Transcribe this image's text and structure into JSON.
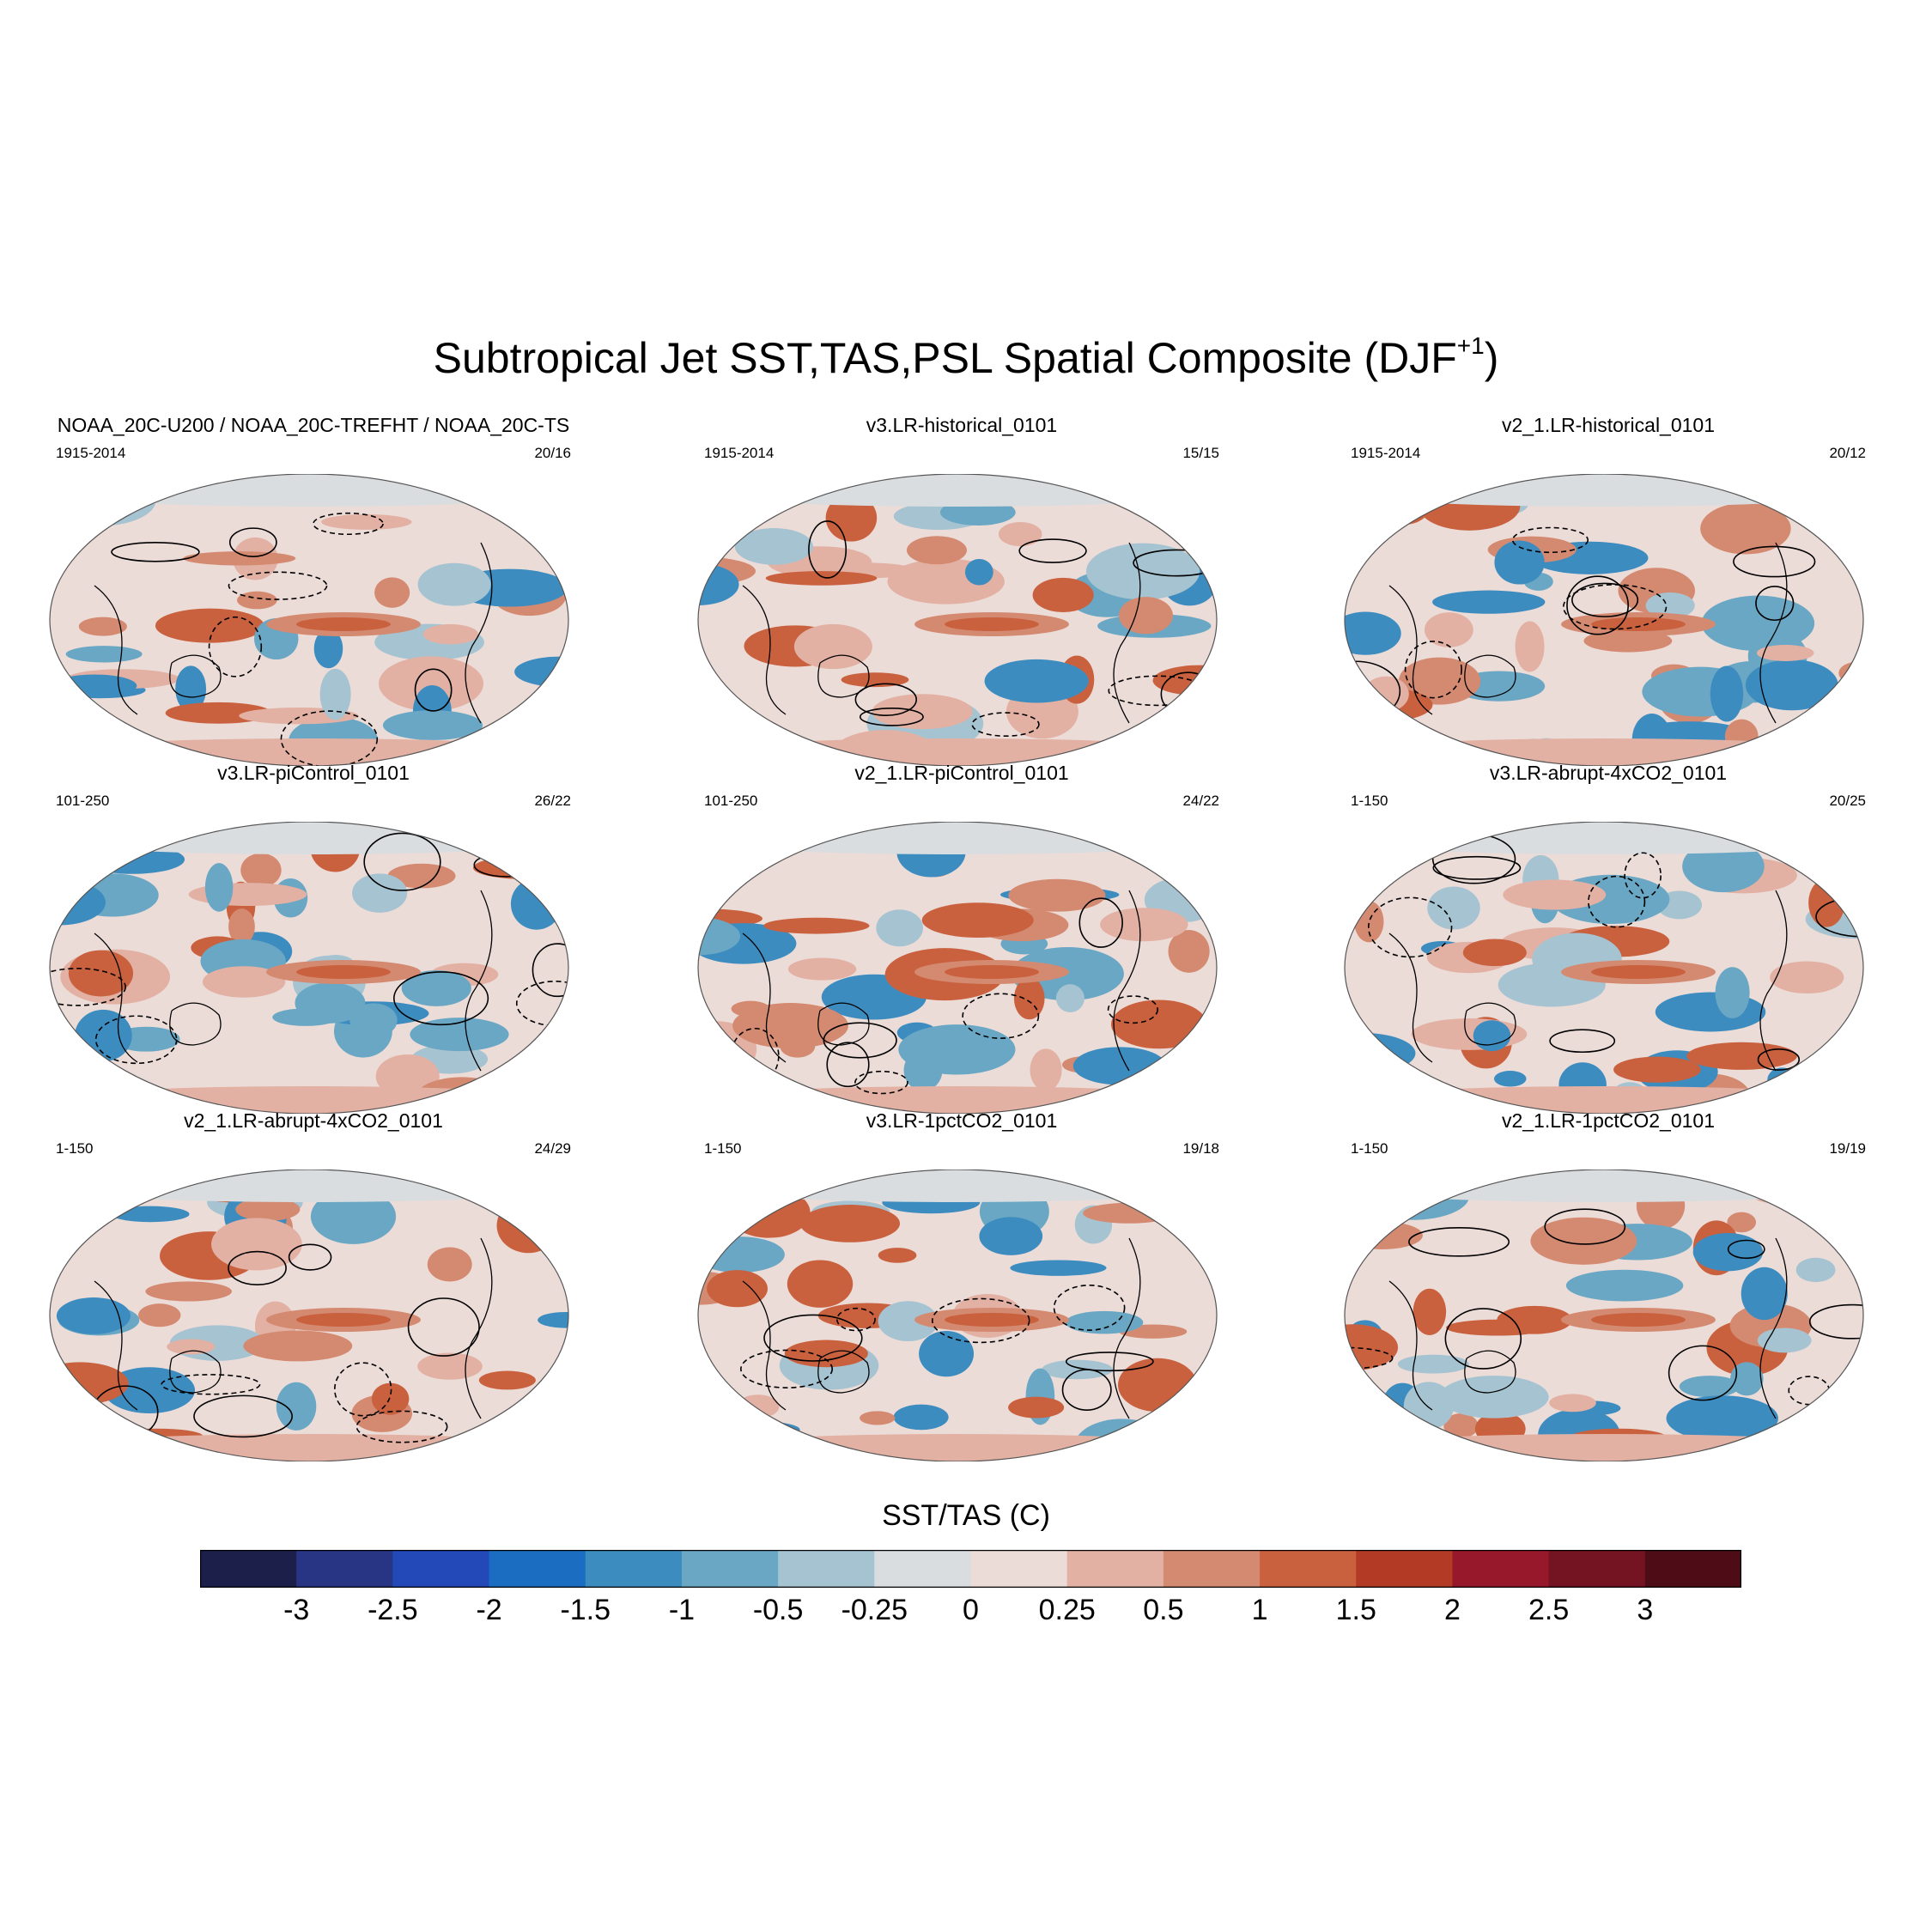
{
  "title": "Subtropical Jet SST,TAS,PSL Spatial Composite (DJF",
  "title_superscript": "+1",
  "panels": [
    {
      "title": "NOAA_20C-U200 / NOAA_20C-TREFHT / NOAA_20C-TS",
      "years": "1915-2014",
      "count": "20/16"
    },
    {
      "title": "v3.LR-historical_0101",
      "years": "1915-2014",
      "count": "15/15"
    },
    {
      "title": "v2_1.LR-historical_0101",
      "years": "1915-2014",
      "count": "20/12"
    },
    {
      "title": "v3.LR-piControl_0101",
      "years": "101-250",
      "count": "26/22"
    },
    {
      "title": "v2_1.LR-piControl_0101",
      "years": "101-250",
      "count": "24/22"
    },
    {
      "title": "v3.LR-abrupt-4xCO2_0101",
      "years": "1-150",
      "count": "20/25"
    },
    {
      "title": "v2_1.LR-abrupt-4xCO2_0101",
      "years": "1-150",
      "count": "24/29"
    },
    {
      "title": "v3.LR-1pctCO2_0101",
      "years": "1-150",
      "count": "19/18"
    },
    {
      "title": "v2_1.LR-1pctCO2_0101",
      "years": "1-150",
      "count": "19/19"
    }
  ],
  "colorbar": {
    "title": "SST/TAS (C)",
    "ticks": [
      "-3",
      "-2.5",
      "-2",
      "-1.5",
      "-1",
      "-0.5",
      "-0.25",
      "0",
      "0.25",
      "0.5",
      "1",
      "1.5",
      "2",
      "2.5",
      "3"
    ],
    "colors": [
      "#1b1f4a",
      "#283585",
      "#2349b8",
      "#1a6dc0",
      "#3d8cc0",
      "#6aa7c4",
      "#a6c3d1",
      "#d9dde0",
      "#ecdcd8",
      "#e2b1a3",
      "#d48a71",
      "#c9613f",
      "#b33b26",
      "#96182a",
      "#741322",
      "#4d0c16"
    ]
  }
}
